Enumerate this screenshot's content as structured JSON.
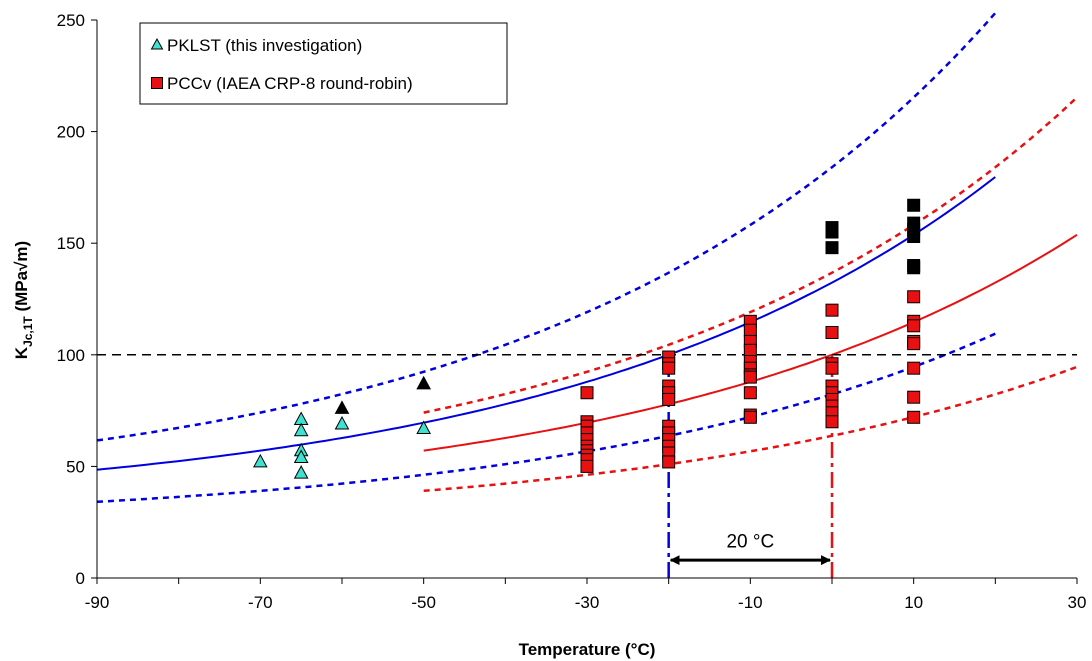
{
  "chart_data": {
    "type": "scatter",
    "title": "",
    "xlabel": "Temperature (°C)",
    "ylabel_main": "K",
    "ylabel_sub": "Jc,1T",
    "ylabel_unit": " (MPa√m)",
    "xlim": [
      -90,
      30
    ],
    "ylim": [
      0,
      250
    ],
    "x_ticks": [
      -90,
      -70,
      -50,
      -30,
      -10,
      10,
      30
    ],
    "x_tick_labels": [
      "-90",
      "-70",
      "-50",
      "-30",
      "-10",
      "10",
      "30"
    ],
    "y_ticks": [
      0,
      50,
      100,
      150,
      200,
      250
    ],
    "y_tick_labels": [
      "0",
      "50",
      "100",
      "150",
      "200",
      "250"
    ],
    "grid": false,
    "legend_position": "top-left",
    "legend": [
      {
        "label": "PKLST (this investigation)",
        "marker": "triangle",
        "color": "#40e0d0"
      },
      {
        "label": "PCCv (IAEA CRP-8 round-robin)",
        "marker": "square",
        "color": "#e81010"
      }
    ],
    "colors": {
      "pklst_marker": "#40e0d0",
      "pccv_marker": "#e81010",
      "excluded_marker": "#000000",
      "blue_curve": "#0000e0",
      "red_curve": "#e81010"
    },
    "series": [
      {
        "name": "PKLST (this investigation)",
        "marker": "triangle",
        "color": "#40e0d0",
        "points": [
          [
            -70,
            52
          ],
          [
            -65,
            71
          ],
          [
            -65,
            66
          ],
          [
            -65,
            57
          ],
          [
            -65,
            54
          ],
          [
            -65,
            47
          ],
          [
            -60,
            69
          ],
          [
            -50,
            67
          ]
        ]
      },
      {
        "name": "PKLST censored",
        "marker": "triangle",
        "color": "#000000",
        "points": [
          [
            -60,
            76
          ],
          [
            -50,
            87
          ]
        ]
      },
      {
        "name": "PCCv (IAEA CRP-8 round-robin)",
        "marker": "square",
        "color": "#e81010",
        "points": [
          [
            -30,
            83
          ],
          [
            -30,
            70
          ],
          [
            -30,
            68
          ],
          [
            -30,
            65
          ],
          [
            -30,
            62
          ],
          [
            -30,
            59
          ],
          [
            -30,
            57
          ],
          [
            -30,
            55
          ],
          [
            -30,
            53
          ],
          [
            -30,
            50
          ],
          [
            -20,
            99
          ],
          [
            -20,
            96
          ],
          [
            -20,
            94
          ],
          [
            -20,
            86
          ],
          [
            -20,
            83
          ],
          [
            -20,
            80
          ],
          [
            -20,
            68
          ],
          [
            -20,
            65
          ],
          [
            -20,
            62
          ],
          [
            -20,
            59
          ],
          [
            -20,
            56
          ],
          [
            -20,
            52
          ],
          [
            -10,
            115
          ],
          [
            -10,
            111
          ],
          [
            -10,
            106
          ],
          [
            -10,
            102
          ],
          [
            -10,
            97
          ],
          [
            -10,
            94
          ],
          [
            -10,
            91
          ],
          [
            -10,
            90
          ],
          [
            -10,
            83
          ],
          [
            -10,
            73
          ],
          [
            -10,
            72
          ],
          [
            0,
            120
          ],
          [
            0,
            110
          ],
          [
            0,
            96
          ],
          [
            0,
            94
          ],
          [
            0,
            86
          ],
          [
            0,
            83
          ],
          [
            0,
            80
          ],
          [
            0,
            77
          ],
          [
            0,
            74
          ],
          [
            0,
            70
          ],
          [
            10,
            126
          ],
          [
            10,
            115
          ],
          [
            10,
            113
          ],
          [
            10,
            106
          ],
          [
            10,
            105
          ],
          [
            10,
            94
          ],
          [
            10,
            81
          ],
          [
            10,
            72
          ]
        ]
      },
      {
        "name": "PCCv censored",
        "marker": "square",
        "color": "#000000",
        "points": [
          [
            0,
            157
          ],
          [
            0,
            155
          ],
          [
            0,
            148
          ],
          [
            10,
            167
          ],
          [
            10,
            159
          ],
          [
            10,
            156
          ],
          [
            10,
            153
          ],
          [
            10,
            140
          ],
          [
            10,
            139
          ]
        ]
      }
    ],
    "curves": [
      {
        "name": "blue median",
        "color": "#0000e0",
        "style": "solid",
        "T0": -20,
        "kind": "median",
        "x_range": [
          -90,
          20
        ]
      },
      {
        "name": "blue upper bound",
        "color": "#0000e0",
        "style": "dotted",
        "T0": -20,
        "kind": "upper",
        "x_range": [
          -90,
          20
        ]
      },
      {
        "name": "blue lower bound",
        "color": "#0000e0",
        "style": "dotted",
        "T0": -20,
        "kind": "lower",
        "x_range": [
          -90,
          20
        ]
      },
      {
        "name": "red median",
        "color": "#e81010",
        "style": "solid",
        "T0": 0,
        "kind": "median",
        "x_range": [
          -50,
          30
        ]
      },
      {
        "name": "red upper bound",
        "color": "#e81010",
        "style": "dotted",
        "T0": 0,
        "kind": "upper",
        "x_range": [
          -50,
          30
        ]
      },
      {
        "name": "red lower bound",
        "color": "#e81010",
        "style": "dotted",
        "T0": 0,
        "kind": "lower",
        "x_range": [
          -50,
          30
        ]
      }
    ],
    "reference_lines": [
      {
        "orientation": "horizontal",
        "value": 100,
        "color": "#000000",
        "style": "dashed"
      },
      {
        "orientation": "vertical",
        "value": -20,
        "color": "#0000e0",
        "style": "dashdot",
        "y_range": [
          0,
          100
        ]
      },
      {
        "orientation": "vertical",
        "value": 0,
        "color": "#e81010",
        "style": "dashdot",
        "y_range": [
          0,
          100
        ]
      }
    ],
    "annotations": [
      {
        "text": "20 °C",
        "type": "double-arrow",
        "x_from": -20,
        "x_to": 0,
        "y": 8,
        "text_y": 15
      }
    ]
  }
}
